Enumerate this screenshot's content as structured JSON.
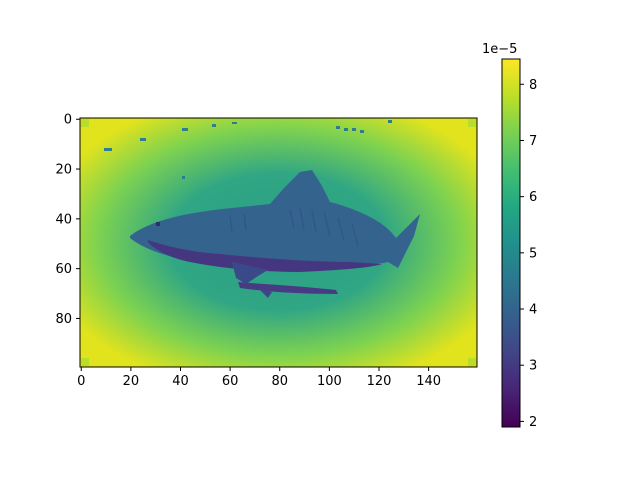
{
  "chart_data": {
    "type": "heatmap",
    "title": "",
    "xlabel": "",
    "ylabel": "",
    "image_shape": [
      100,
      160
    ],
    "xlim": [
      -0.5,
      159.5
    ],
    "ylim": [
      99.5,
      -0.5
    ],
    "x_ticks": [
      0,
      20,
      40,
      60,
      80,
      100,
      120,
      140
    ],
    "y_ticks": [
      0,
      20,
      40,
      60,
      80
    ],
    "colormap": "viridis",
    "colorbar": {
      "min": 1.9,
      "max": 8.45,
      "ticks": [
        2,
        3,
        4,
        5,
        6,
        7,
        8
      ],
      "tick_labels": [
        "2",
        "3",
        "4",
        "5",
        "6",
        "7",
        "8"
      ],
      "offset_text": "1e−5"
    },
    "values_description_free": true,
    "background": {
      "center_value": 5.6,
      "corner_value": 8.4
    },
    "shark": {
      "body_value": 4.6,
      "belly_value": 2.6,
      "remora_value": 2.9
    },
    "grid": false,
    "legend": "none"
  }
}
